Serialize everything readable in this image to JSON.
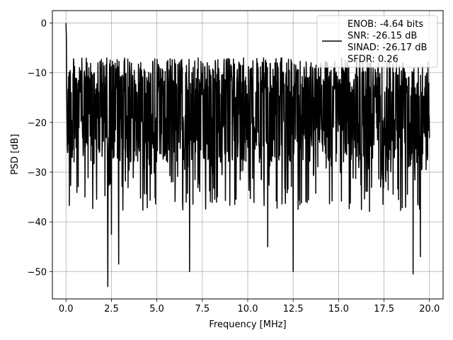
{
  "chart_data": {
    "type": "line",
    "title": "",
    "xlabel": "Frequency [MHz]",
    "ylabel": "PSD [dB]",
    "xlim": [
      -0.75,
      20.75
    ],
    "ylim": [
      -55.5,
      2.5
    ],
    "xticks": [
      0.0,
      2.5,
      5.0,
      7.5,
      10.0,
      12.5,
      15.0,
      17.5,
      20.0
    ],
    "xtick_labels": [
      "0.0",
      "2.5",
      "5.0",
      "7.5",
      "10.0",
      "12.5",
      "15.0",
      "17.5",
      "20.0"
    ],
    "yticks": [
      0,
      -10,
      -20,
      -30,
      -40,
      -50
    ],
    "ytick_labels": [
      "0",
      "−10",
      "−20",
      "−30",
      "−40",
      "−50"
    ],
    "grid": true,
    "legend": {
      "placement": "top-right",
      "entries": [
        "ENOB: -4.64 bits\nSNR: -26.15 dB\nSINAD: -26.17 dB\nSFDR: 0.26"
      ]
    },
    "series": [
      {
        "color": "#000000",
        "x_range": [
          0.0,
          20.0
        ],
        "typical_upper_dB": -7,
        "typical_lower_dB": -28,
        "peak": {
          "x": 0.0,
          "y": 0.0
        },
        "notable_dips": [
          {
            "x": 2.3,
            "y": -53
          },
          {
            "x": 2.5,
            "y": -42.5
          },
          {
            "x": 2.9,
            "y": -48.5
          },
          {
            "x": 6.8,
            "y": -50
          },
          {
            "x": 12.5,
            "y": -50
          },
          {
            "x": 19.1,
            "y": -50.5
          },
          {
            "x": 11.1,
            "y": -45
          },
          {
            "x": 19.5,
            "y": -47
          }
        ]
      }
    ]
  },
  "colors": {
    "line": "#000000",
    "grid": "#b0b0b0",
    "axes": "#000000",
    "background": "#ffffff"
  }
}
